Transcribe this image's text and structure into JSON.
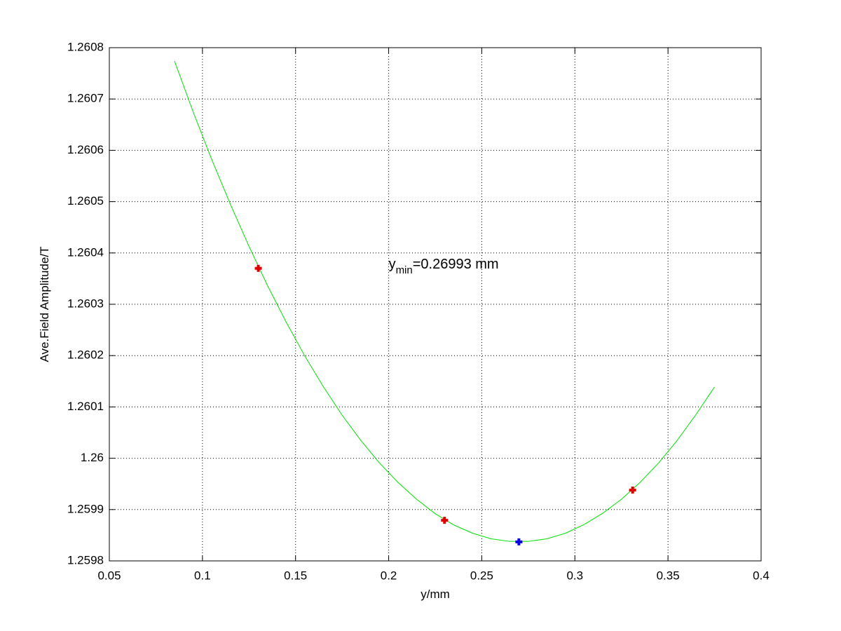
{
  "chart_data": {
    "type": "line",
    "xlabel": "y/mm",
    "ylabel": "Ave.Field Amplitude/T",
    "annotation": {
      "base": "y",
      "sub": "min",
      "text": "=0.26993 mm",
      "x": 0.2,
      "y": 1.26037
    },
    "xlim": [
      0.05,
      0.4
    ],
    "xticks": [
      0.05,
      0.1,
      0.15,
      0.2,
      0.25,
      0.3,
      0.35,
      0.4
    ],
    "ylim": [
      1.2598,
      1.2608
    ],
    "yticks": [
      1.2598,
      1.2599,
      1.26,
      1.2601,
      1.2602,
      1.2603,
      1.2604,
      1.2605,
      1.2606,
      1.2607,
      1.2608
    ],
    "grid": true,
    "series": [
      {
        "mode": "line",
        "color": "#00e000",
        "x": [
          0.085,
          0.095,
          0.105,
          0.115,
          0.125,
          0.135,
          0.145,
          0.155,
          0.165,
          0.175,
          0.185,
          0.195,
          0.205,
          0.215,
          0.225,
          0.235,
          0.245,
          0.255,
          0.265,
          0.275,
          0.285,
          0.295,
          0.305,
          0.315,
          0.325,
          0.335,
          0.345,
          0.355,
          0.365,
          0.375
        ],
        "values": [
          1.260774,
          1.260675,
          1.260582,
          1.260495,
          1.260413,
          1.260336,
          1.260265,
          1.260199,
          1.260139,
          1.260084,
          1.260035,
          1.259991,
          1.259953,
          1.25992,
          1.259892,
          1.25987,
          1.259854,
          1.259843,
          1.259838,
          1.259838,
          1.259843,
          1.259854,
          1.259871,
          1.259893,
          1.25992,
          1.259953,
          1.259991,
          1.260035,
          1.260085,
          1.260139
        ]
      },
      {
        "mode": "markers",
        "color": "#e00000",
        "x": [
          0.13,
          0.23,
          0.331
        ],
        "values": [
          1.26037,
          1.259879,
          1.259938
        ]
      },
      {
        "mode": "markers",
        "color": "#0000e0",
        "x": [
          0.26993
        ],
        "values": [
          1.259837
        ]
      }
    ]
  }
}
